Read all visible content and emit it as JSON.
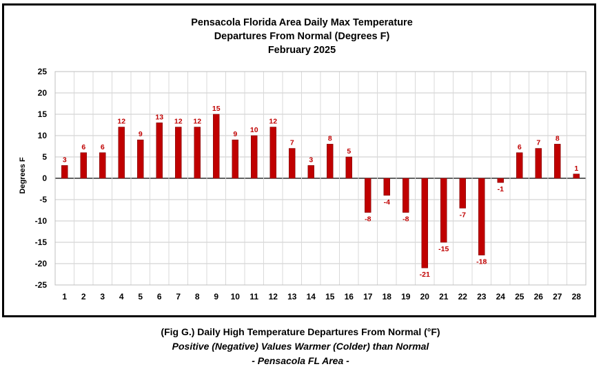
{
  "chart_data": {
    "type": "bar",
    "title_lines": [
      "Pensacola Florida Area Daily Max Temperature",
      "Departures From Normal (Degrees F)",
      "February 2025"
    ],
    "xlabel": "",
    "ylabel": "Degrees F",
    "ylim": [
      -25,
      25
    ],
    "yticks": [
      25,
      20,
      15,
      10,
      5,
      0,
      -5,
      -10,
      -15,
      -20,
      -25
    ],
    "grid": true,
    "categories": [
      "1",
      "2",
      "3",
      "4",
      "5",
      "6",
      "7",
      "8",
      "9",
      "10",
      "11",
      "12",
      "13",
      "14",
      "15",
      "16",
      "17",
      "18",
      "19",
      "20",
      "21",
      "22",
      "23",
      "24",
      "25",
      "26",
      "27",
      "28"
    ],
    "values": [
      3,
      6,
      6,
      12,
      9,
      13,
      12,
      12,
      15,
      9,
      10,
      12,
      7,
      3,
      8,
      5,
      -8,
      -4,
      -8,
      -21,
      -15,
      -7,
      -18,
      -1,
      6,
      7,
      8,
      1
    ],
    "data_labels": [
      "3",
      "6",
      "6",
      "12",
      "9",
      "13",
      "12",
      "12",
      "15",
      "9",
      "10",
      "12",
      "7",
      "3",
      "8",
      "5",
      "-8",
      "-4",
      "-8",
      "-21",
      "-15",
      "-7",
      "-18",
      "-1",
      "6",
      "7",
      "8",
      "1"
    ],
    "bar_color": "#c00000",
    "label_color": "#c00000"
  },
  "caption": {
    "line1": "(Fig G.) Daily High Temperature Departures From Normal (°F)",
    "line2": "Positive (Negative) Values Warmer (Colder) than Normal",
    "line3": "- Pensacola FL Area -"
  }
}
